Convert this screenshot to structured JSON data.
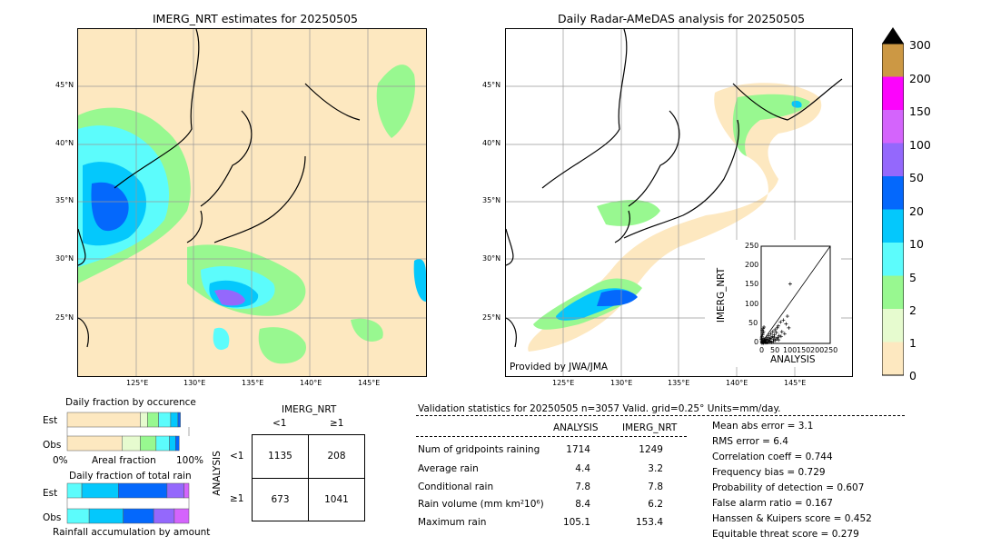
{
  "left_map": {
    "title": "IMERG_NRT estimates for 20250505",
    "lat_labels": [
      "45°N",
      "40°N",
      "35°N",
      "30°N",
      "25°N"
    ],
    "lon_labels": [
      "125°E",
      "130°E",
      "135°E",
      "140°E",
      "145°E"
    ]
  },
  "right_map": {
    "title": "Daily Radar-AMeDAS analysis for 20250505",
    "lat_labels": [
      "45°N",
      "40°N",
      "35°N",
      "30°N",
      "25°N"
    ],
    "lon_labels": [
      "125°E",
      "130°E",
      "135°E",
      "140°E",
      "145°E"
    ],
    "credit": "Provided by JWA/JMA"
  },
  "colorbar": {
    "ticks": [
      "0",
      "1",
      "2",
      "5",
      "10",
      "20",
      "50",
      "100",
      "150",
      "200",
      "300"
    ],
    "colors": [
      "#fde8c0",
      "#e6fbcf",
      "#98f890",
      "#5cfcfc",
      "#04c8fc",
      "#0468fc",
      "#9468fc",
      "#d464fc",
      "#fc04fc",
      "#cc9844"
    ]
  },
  "scatter": {
    "xlabel": "ANALYSIS",
    "ylabel": "IMERG_NRT",
    "ticks": [
      "0",
      "50",
      "100",
      "150",
      "200",
      "250"
    ]
  },
  "chart_data": {
    "type": "scatter",
    "xlabel": "ANALYSIS",
    "ylabel": "IMERG_NRT",
    "xlim": [
      0,
      250
    ],
    "ylim": [
      0,
      250
    ],
    "points": [
      [
        2,
        5
      ],
      [
        4,
        2
      ],
      [
        6,
        8
      ],
      [
        8,
        3
      ],
      [
        10,
        12
      ],
      [
        12,
        6
      ],
      [
        15,
        4
      ],
      [
        18,
        10
      ],
      [
        20,
        2
      ],
      [
        22,
        15
      ],
      [
        25,
        8
      ],
      [
        28,
        20
      ],
      [
        30,
        5
      ],
      [
        32,
        12
      ],
      [
        35,
        25
      ],
      [
        38,
        3
      ],
      [
        40,
        18
      ],
      [
        42,
        30
      ],
      [
        45,
        10
      ],
      [
        48,
        22
      ],
      [
        50,
        35
      ],
      [
        52,
        8
      ],
      [
        55,
        28
      ],
      [
        58,
        40
      ],
      [
        60,
        15
      ],
      [
        62,
        45
      ],
      [
        65,
        20
      ],
      [
        70,
        55
      ],
      [
        75,
        30
      ],
      [
        80,
        60
      ],
      [
        85,
        25
      ],
      [
        90,
        50
      ],
      [
        95,
        70
      ],
      [
        100,
        40
      ],
      [
        105,
        153
      ],
      [
        3,
        1
      ],
      [
        5,
        6
      ],
      [
        7,
        3
      ],
      [
        9,
        1
      ],
      [
        11,
        4
      ],
      [
        14,
        9
      ],
      [
        16,
        2
      ],
      [
        19,
        7
      ],
      [
        24,
        3
      ],
      [
        27,
        12
      ],
      [
        33,
        6
      ],
      [
        36,
        14
      ],
      [
        44,
        5
      ],
      [
        47,
        16
      ],
      [
        56,
        12
      ],
      [
        63,
        9
      ],
      [
        72,
        18
      ],
      [
        1,
        10
      ],
      [
        2,
        14
      ],
      [
        3,
        18
      ],
      [
        5,
        22
      ],
      [
        6,
        26
      ],
      [
        8,
        30
      ],
      [
        4,
        34
      ],
      [
        7,
        38
      ],
      [
        10,
        42
      ]
    ]
  },
  "occurrence": {
    "title": "Daily fraction by occurence",
    "rows": [
      "Est",
      "Obs"
    ],
    "axis_left": "0%",
    "axis_mid": "Areal fraction",
    "axis_right": "100%",
    "est": [
      0.6,
      0.06,
      0.09,
      0.1,
      0.06,
      0.02
    ],
    "obs": [
      0.45,
      0.15,
      0.13,
      0.11,
      0.05,
      0.03
    ]
  },
  "accumulation": {
    "title": "Daily fraction of total rain",
    "rows": [
      "Est",
      "Obs"
    ],
    "axis_label": "Rainfall accumulation by amount",
    "est": [
      0.12,
      0.3,
      0.4,
      0.14,
      0.04
    ],
    "obs": [
      0.18,
      0.28,
      0.25,
      0.17,
      0.12
    ]
  },
  "contingency": {
    "col_title": "IMERG_NRT",
    "col_labels": [
      "<1",
      "≥1"
    ],
    "row_title": "ANALYSIS",
    "row_labels": [
      "<1",
      "≥1"
    ],
    "cells": [
      "1135",
      "208",
      "673",
      "1041"
    ]
  },
  "validation": {
    "header": "Validation statistics for 20250505  n=3057 Valid. grid=0.25° Units=mm/day.",
    "col_analysis": "ANALYSIS",
    "col_imerg": "IMERG_NRT",
    "rows": [
      {
        "label": "Num of gridpoints raining",
        "analysis": "1714",
        "imerg": "1249"
      },
      {
        "label": "Average rain",
        "analysis": "4.4",
        "imerg": "3.2"
      },
      {
        "label": "Conditional rain",
        "analysis": "7.8",
        "imerg": "7.8"
      },
      {
        "label": "Rain volume (mm km²10⁶)",
        "analysis": "8.4",
        "imerg": "6.2"
      },
      {
        "label": "Maximum rain",
        "analysis": "105.1",
        "imerg": "153.4"
      }
    ],
    "scores": [
      "Mean abs error =    3.1",
      "RMS error =    6.4",
      "Correlation coeff =  0.744",
      "Frequency bias =  0.729",
      "Probability of detection =  0.607",
      "False alarm ratio =  0.167",
      "Hanssen & Kuipers score =  0.452",
      "Equitable threat score =  0.279"
    ]
  }
}
